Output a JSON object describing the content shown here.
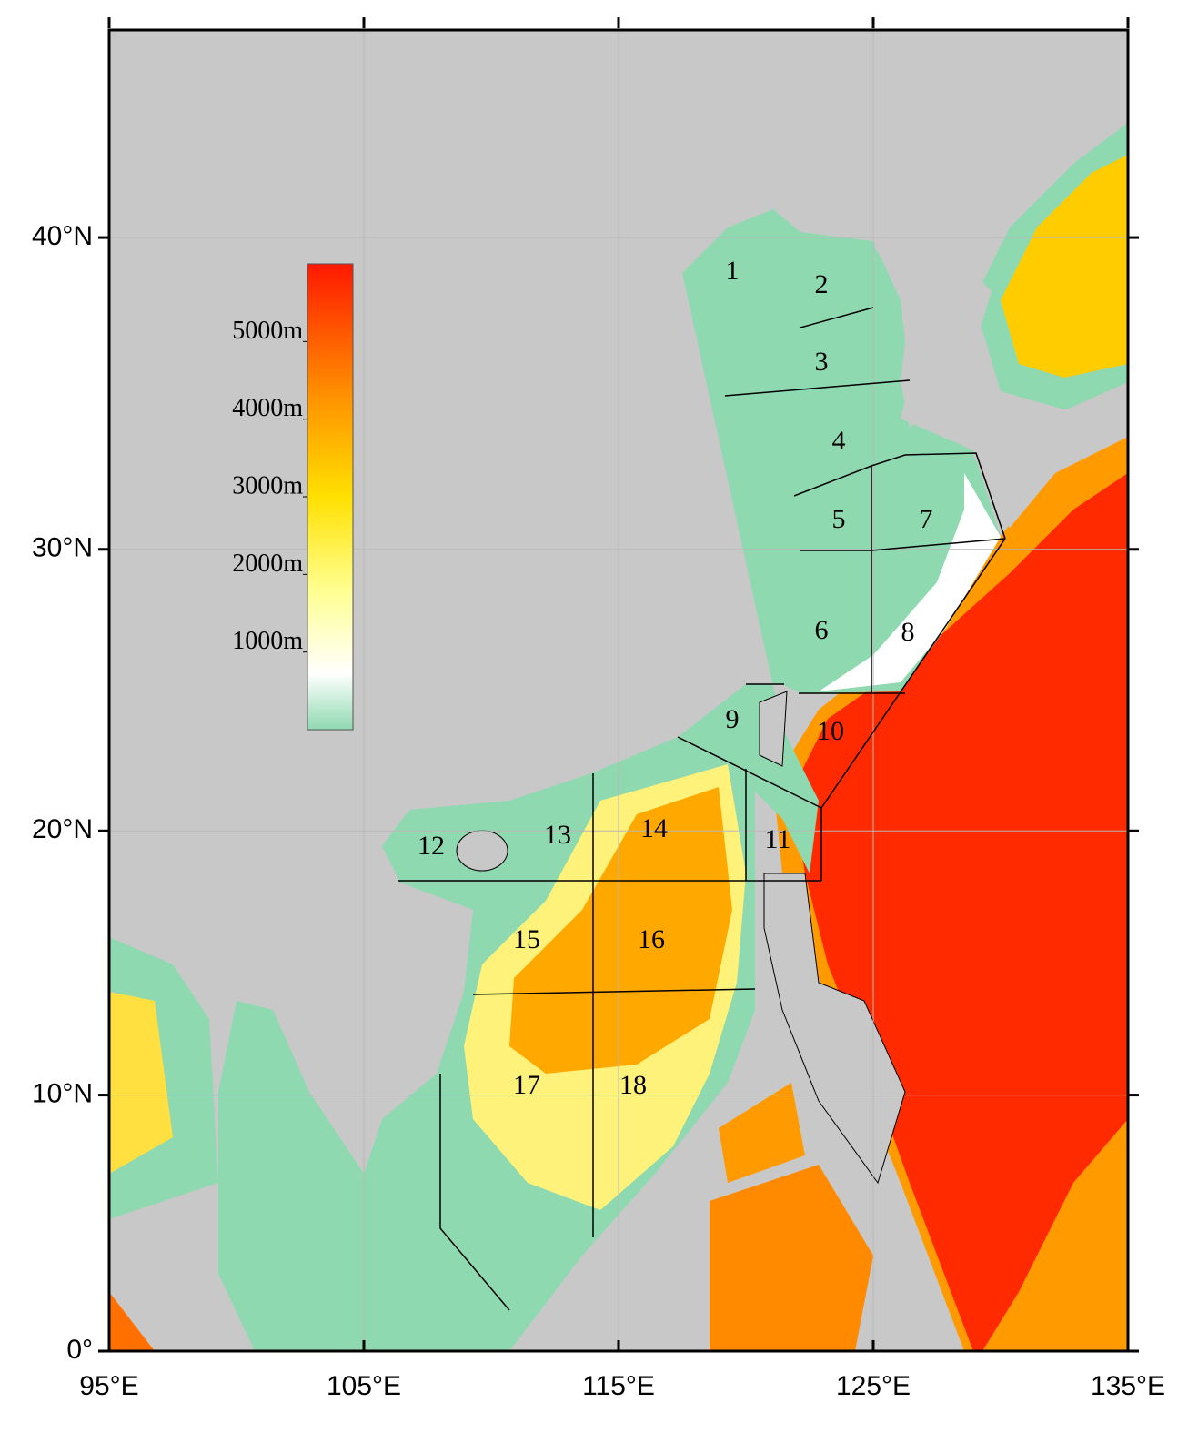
{
  "chart_data": {
    "type": "map",
    "xlim": [
      95,
      135
    ],
    "ylim": [
      0,
      46
    ],
    "xticks": [
      {
        "value": 95,
        "label": "95°E"
      },
      {
        "value": 105,
        "label": "105°E"
      },
      {
        "value": 115,
        "label": "115°E"
      },
      {
        "value": 125,
        "label": "125°E"
      },
      {
        "value": 135,
        "label": "135°E"
      }
    ],
    "yticks": [
      {
        "value": 0,
        "label": "0°"
      },
      {
        "value": 10,
        "label": "10°N"
      },
      {
        "value": 20,
        "label": "20°N"
      },
      {
        "value": 30,
        "label": "30°N"
      },
      {
        "value": 40,
        "label": "40°N"
      }
    ],
    "colorbar": {
      "lim": [
        0,
        6000
      ],
      "ticks": [
        {
          "value": 1000,
          "label": "1000m"
        },
        {
          "value": 2000,
          "label": "2000m"
        },
        {
          "value": 3000,
          "label": "3000m"
        },
        {
          "value": 4000,
          "label": "4000m"
        },
        {
          "value": 5000,
          "label": "5000m"
        }
      ]
    },
    "regions": [
      "1",
      "2",
      "3",
      "4",
      "5",
      "6",
      "7",
      "8",
      "9",
      "10",
      "11",
      "12",
      "13",
      "14",
      "15",
      "16",
      "17",
      "18"
    ],
    "grid": true
  }
}
